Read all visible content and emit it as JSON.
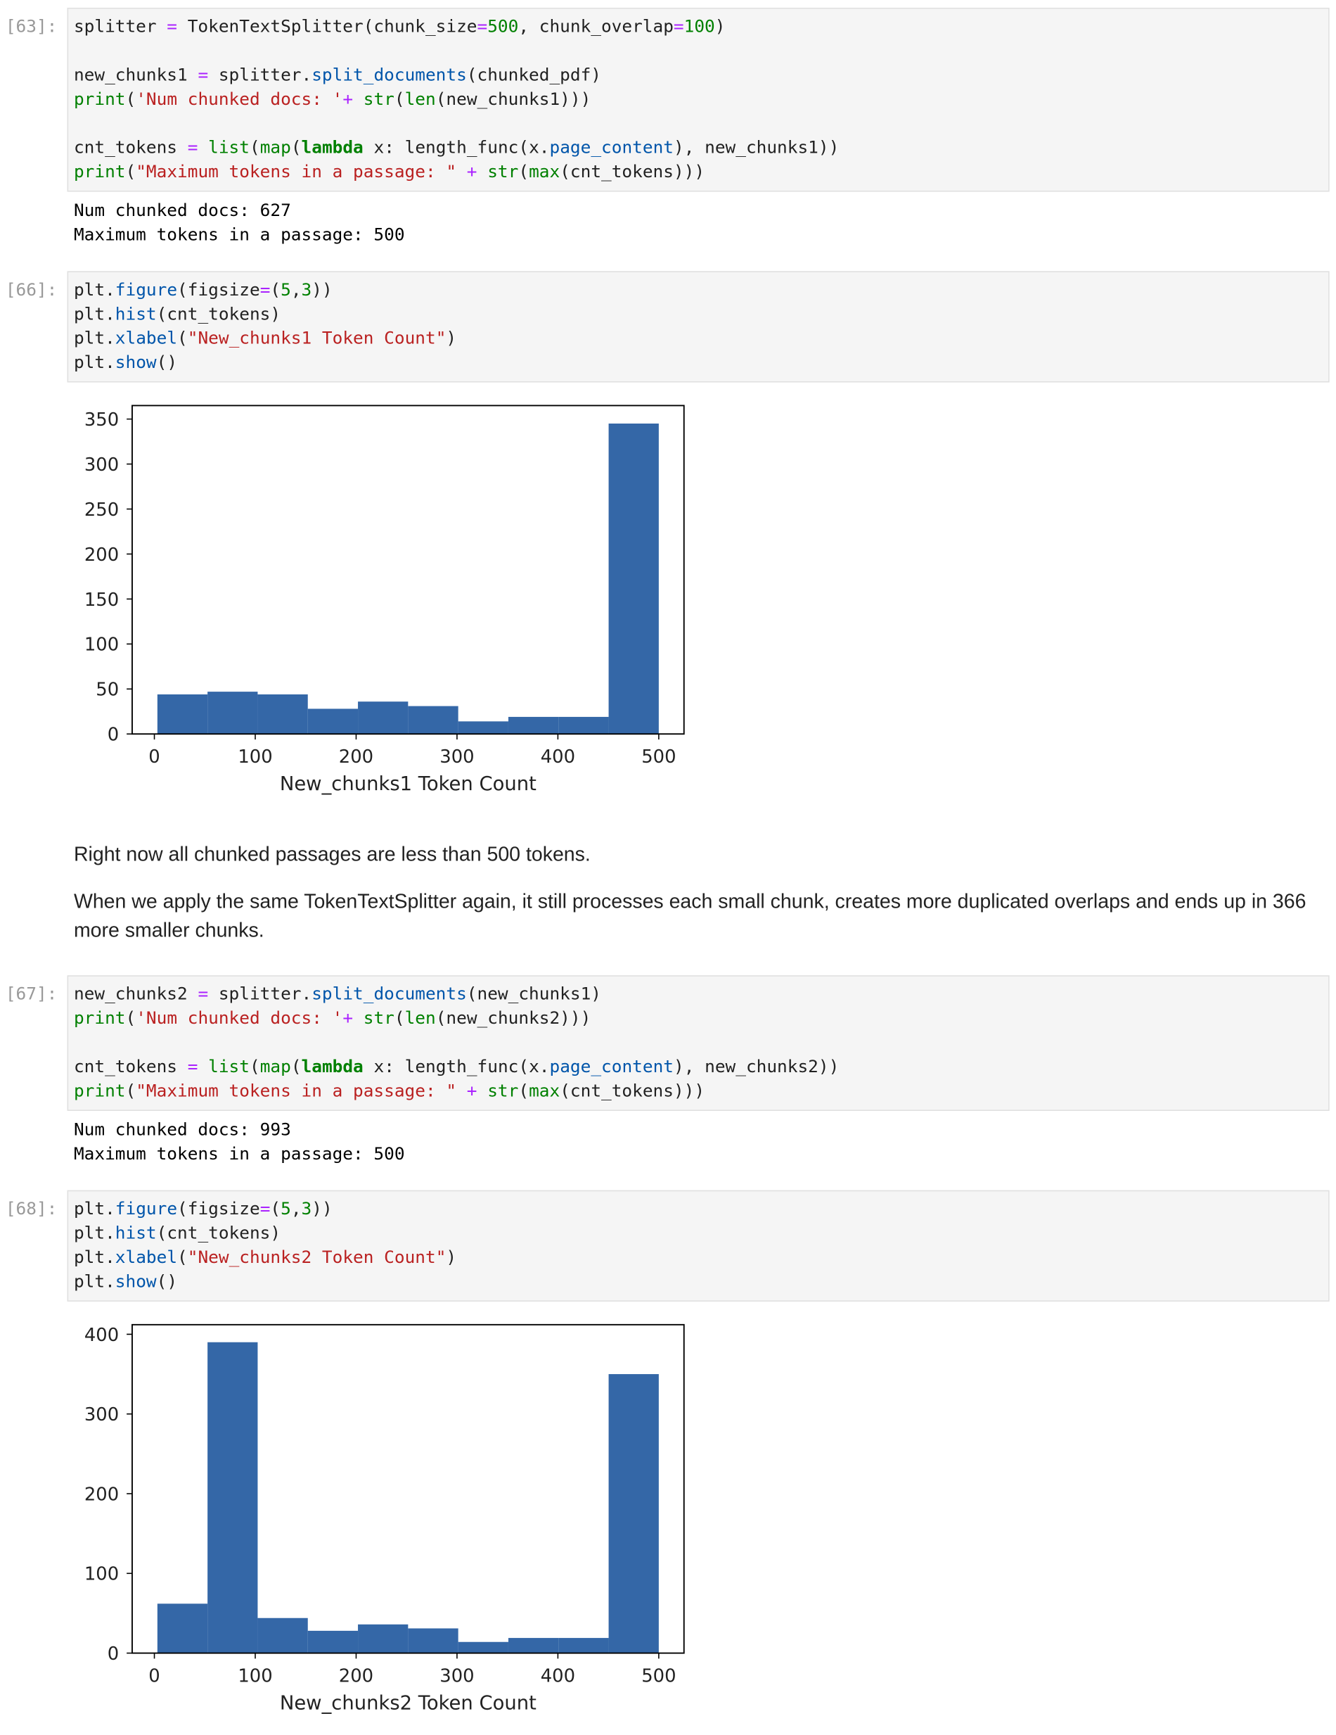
{
  "cells": [
    {
      "prompt": "[63]:",
      "code": [
        [
          [
            "splitter ",
            {
              "text": "=",
              "color": "#aa22ff"
            },
            " TokenTextSplitter(chunk_size",
            {
              "text": "=",
              "color": "#aa22ff"
            },
            {
              "text": "500",
              "color": "#008000"
            },
            ", chunk_overlap",
            {
              "text": "=",
              "color": "#aa22ff"
            },
            {
              "text": "100",
              "color": "#008000"
            },
            ")"
          ]
        ],
        [
          [
            "new_chunks1 ",
            {
              "text": "=",
              "color": "#aa22ff"
            },
            " splitter.",
            {
              "text": "split_documents",
              "color": "#0055aa"
            },
            "(chunked_pdf)"
          ],
          [
            {
              "text": "print",
              "color": "#008000"
            },
            "(",
            {
              "text": "'Num chunked docs: '",
              "color": "#ba2121"
            },
            {
              "text": "+",
              "color": "#aa22ff"
            },
            " ",
            {
              "text": "str",
              "color": "#008000"
            },
            "(",
            {
              "text": "len",
              "color": "#008000"
            },
            "(new_chunks1)))"
          ]
        ],
        [
          [
            "cnt_tokens ",
            {
              "text": "=",
              "color": "#aa22ff"
            },
            " ",
            {
              "text": "list",
              "color": "#008000"
            },
            "(",
            {
              "text": "map",
              "color": "#008000"
            },
            "(",
            {
              "text": "lambda",
              "color": "#008000",
              "bold": true
            },
            " x: length_func(x.",
            {
              "text": "page_content",
              "color": "#0055aa"
            },
            "), new_chunks1))"
          ],
          [
            {
              "text": "print",
              "color": "#008000"
            },
            "(",
            {
              "text": "\"Maximum tokens in a passage: \"",
              "color": "#ba2121"
            },
            " ",
            {
              "text": "+",
              "color": "#aa22ff"
            },
            " ",
            {
              "text": "str",
              "color": "#008000"
            },
            "(",
            {
              "text": "max",
              "color": "#008000"
            },
            "(cnt_tokens)))"
          ]
        ]
      ],
      "output": [
        "Num chunked docs: 627",
        "Maximum tokens in a passage: 500"
      ]
    },
    {
      "prompt": "[66]:",
      "code": [
        [
          [
            "plt.",
            {
              "text": "figure",
              "color": "#0055aa"
            },
            "(figsize",
            {
              "text": "=",
              "color": "#aa22ff"
            },
            "(",
            {
              "text": "5",
              "color": "#008000"
            },
            ",",
            {
              "text": "3",
              "color": "#008000"
            },
            "))"
          ],
          [
            "plt.",
            {
              "text": "hist",
              "color": "#0055aa"
            },
            "(cnt_tokens)"
          ],
          [
            "plt.",
            {
              "text": "xlabel",
              "color": "#0055aa"
            },
            "(",
            {
              "text": "\"New_chunks1 Token Count\"",
              "color": "#ba2121"
            },
            ")"
          ],
          [
            "plt.",
            {
              "text": "show",
              "color": "#0055aa"
            },
            "()"
          ]
        ]
      ]
    },
    {
      "markdown": [
        "Right now all chunked passages are less than 500 tokens.",
        "When we apply the same TokenTextSplitter again, it still processes each small chunk, creates more duplicated overlaps and ends up in 366 more smaller chunks."
      ]
    },
    {
      "prompt": "[67]:",
      "code": [
        [
          [
            "new_chunks2 ",
            {
              "text": "=",
              "color": "#aa22ff"
            },
            " splitter.",
            {
              "text": "split_documents",
              "color": "#0055aa"
            },
            "(new_chunks1)"
          ],
          [
            {
              "text": "print",
              "color": "#008000"
            },
            "(",
            {
              "text": "'Num chunked docs: '",
              "color": "#ba2121"
            },
            {
              "text": "+",
              "color": "#aa22ff"
            },
            " ",
            {
              "text": "str",
              "color": "#008000"
            },
            "(",
            {
              "text": "len",
              "color": "#008000"
            },
            "(new_chunks2)))"
          ]
        ],
        [
          [
            "cnt_tokens ",
            {
              "text": "=",
              "color": "#aa22ff"
            },
            " ",
            {
              "text": "list",
              "color": "#008000"
            },
            "(",
            {
              "text": "map",
              "color": "#008000"
            },
            "(",
            {
              "text": "lambda",
              "color": "#008000",
              "bold": true
            },
            " x: length_func(x.",
            {
              "text": "page_content",
              "color": "#0055aa"
            },
            "), new_chunks2))"
          ],
          [
            {
              "text": "print",
              "color": "#008000"
            },
            "(",
            {
              "text": "\"Maximum tokens in a passage: \"",
              "color": "#ba2121"
            },
            " ",
            {
              "text": "+",
              "color": "#aa22ff"
            },
            " ",
            {
              "text": "str",
              "color": "#008000"
            },
            "(",
            {
              "text": "max",
              "color": "#008000"
            },
            "(cnt_tokens)))"
          ]
        ]
      ],
      "output": [
        "Num chunked docs: 993",
        "Maximum tokens in a passage: 500"
      ]
    },
    {
      "prompt": "[68]:",
      "code": [
        [
          [
            "plt.",
            {
              "text": "figure",
              "color": "#0055aa"
            },
            "(figsize",
            {
              "text": "=",
              "color": "#aa22ff"
            },
            "(",
            {
              "text": "5",
              "color": "#008000"
            },
            ",",
            {
              "text": "3",
              "color": "#008000"
            },
            "))"
          ],
          [
            "plt.",
            {
              "text": "hist",
              "color": "#0055aa"
            },
            "(cnt_tokens)"
          ],
          [
            "plt.",
            {
              "text": "xlabel",
              "color": "#0055aa"
            },
            "(",
            {
              "text": "\"New_chunks2 Token Count\"",
              "color": "#ba2121"
            },
            ")"
          ],
          [
            "plt.",
            {
              "text": "show",
              "color": "#0055aa"
            },
            "()"
          ]
        ]
      ]
    }
  ],
  "chart_data": [
    {
      "type": "histogram",
      "xlabel": "New_chunks1 Token Count",
      "color": "#3467a7",
      "bins": [
        3,
        52.7,
        102.4,
        152.1,
        201.8,
        251.5,
        301.2,
        350.9,
        400.6,
        450.3,
        500
      ],
      "values": [
        44,
        47,
        44,
        28,
        36,
        31,
        14,
        19,
        19,
        345
      ],
      "xlim": [
        -22,
        525
      ],
      "ylim": [
        0,
        365
      ],
      "xticks": [
        0,
        100,
        200,
        300,
        400,
        500
      ],
      "yticks": [
        0,
        50,
        100,
        150,
        200,
        250,
        300,
        350
      ]
    },
    {
      "type": "histogram",
      "xlabel": "New_chunks2 Token Count",
      "color": "#3467a7",
      "bins": [
        3,
        52.7,
        102.4,
        152.1,
        201.8,
        251.5,
        301.2,
        350.9,
        400.6,
        450.3,
        500
      ],
      "values": [
        62,
        390,
        44,
        28,
        36,
        31,
        14,
        19,
        19,
        350
      ],
      "xlim": [
        -22,
        525
      ],
      "ylim": [
        0,
        412
      ],
      "xticks": [
        0,
        100,
        200,
        300,
        400,
        500
      ],
      "yticks": [
        0,
        100,
        200,
        300,
        400
      ]
    }
  ]
}
